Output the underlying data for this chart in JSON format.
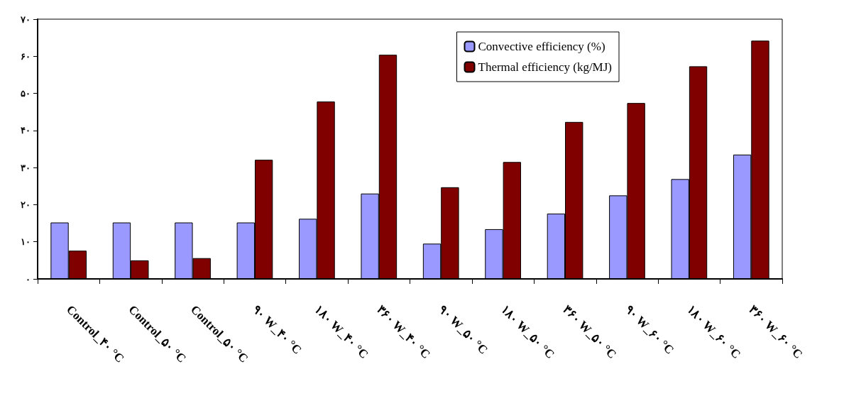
{
  "chart_data": {
    "type": "bar",
    "categories": [
      "Control_۴۰ °C",
      "Control_۵۰ °C",
      "Control_۵۰ °C",
      "۹۰ W_۴۰ °C",
      "۱۸۰ W_۴۰ °C",
      "۳۶۰ W_۴۰ °C",
      "۹۰ W_۵۰ °C",
      "۱۸۰ W_۵۰ °C",
      "۳۶۰ W_۵۰ °C",
      "۹۰ W_۶۰ °C",
      "۱۸۰ W_۶۰ °C",
      "۳۶۰ W_۶۰ °C"
    ],
    "series": [
      {
        "name": "Convective efficiency (%)",
        "color": "#9999ff",
        "values": [
          15.2,
          15.2,
          15.2,
          15.2,
          16.2,
          23.0,
          9.5,
          13.4,
          17.6,
          22.5,
          26.9,
          33.5
        ]
      },
      {
        "name": "Thermal efficiency (kg/MJ)",
        "color": "#800000",
        "values": [
          7.6,
          5.0,
          5.6,
          32.1,
          47.8,
          60.4,
          24.7,
          31.5,
          42.3,
          47.4,
          57.3,
          64.2
        ]
      }
    ],
    "ylim": [
      0,
      70
    ],
    "yticks": [
      {
        "value": 0,
        "label": "۰"
      },
      {
        "value": 10,
        "label": "۱۰"
      },
      {
        "value": 20,
        "label": "۲۰"
      },
      {
        "value": 30,
        "label": "۳۰"
      },
      {
        "value": 40,
        "label": "۴۰"
      },
      {
        "value": 50,
        "label": "۵۰"
      },
      {
        "value": 60,
        "label": "۶۰"
      },
      {
        "value": 70,
        "label": "۷۰"
      }
    ],
    "grid": false,
    "legend": "top right"
  }
}
